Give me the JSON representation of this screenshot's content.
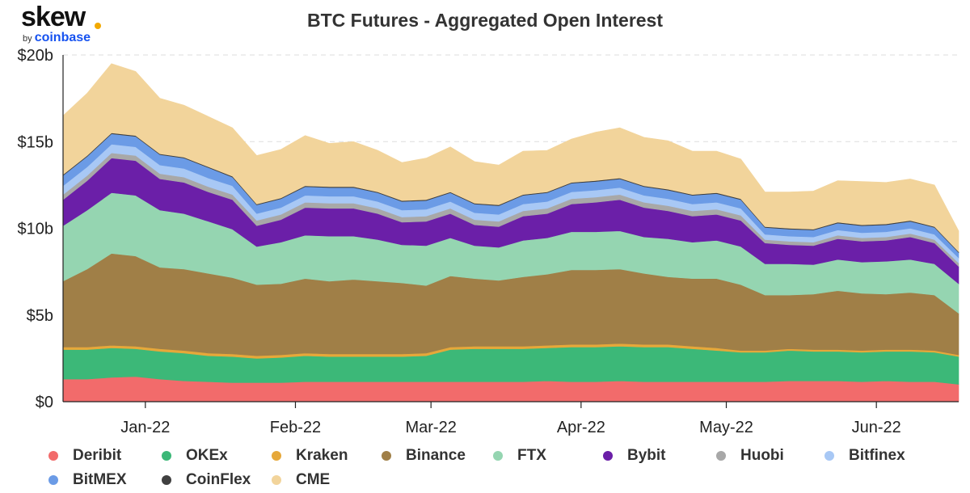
{
  "logo": {
    "word": "skew",
    "by": "by",
    "brand": "coinbase"
  },
  "chart_data": {
    "type": "area",
    "title": "BTC Futures - Aggregated Open Interest",
    "xlabel": "",
    "ylabel": "",
    "stacked": true,
    "grid": true,
    "legend_position": "bottom",
    "ylim": [
      0,
      20000000000
    ],
    "xlim": [
      "2021-12-15",
      "2022-06-18"
    ],
    "y_ticks": [
      {
        "value": 0,
        "label": "$0"
      },
      {
        "value": 5000000000,
        "label": "$5b"
      },
      {
        "value": 10000000000,
        "label": "$10b"
      },
      {
        "value": 15000000000,
        "label": "$15b"
      },
      {
        "value": 20000000000,
        "label": "$20b"
      }
    ],
    "x_ticks": [
      {
        "date": "2022-01-01",
        "label": "Jan-22"
      },
      {
        "date": "2022-02-01",
        "label": "Feb-22"
      },
      {
        "date": "2022-03-01",
        "label": "Mar-22"
      },
      {
        "date": "2022-04-01",
        "label": "Apr-22"
      },
      {
        "date": "2022-05-01",
        "label": "May-22"
      },
      {
        "date": "2022-06-01",
        "label": "Jun-22"
      }
    ],
    "x": [
      "2021-12-15",
      "2021-12-20",
      "2021-12-25",
      "2021-12-30",
      "2022-01-04",
      "2022-01-09",
      "2022-01-14",
      "2022-01-19",
      "2022-01-24",
      "2022-01-29",
      "2022-02-03",
      "2022-02-08",
      "2022-02-13",
      "2022-02-18",
      "2022-02-23",
      "2022-02-28",
      "2022-03-05",
      "2022-03-10",
      "2022-03-15",
      "2022-03-20",
      "2022-03-25",
      "2022-03-30",
      "2022-04-04",
      "2022-04-09",
      "2022-04-14",
      "2022-04-19",
      "2022-04-24",
      "2022-04-29",
      "2022-05-04",
      "2022-05-09",
      "2022-05-14",
      "2022-05-19",
      "2022-05-24",
      "2022-05-29",
      "2022-06-03",
      "2022-06-08",
      "2022-06-13",
      "2022-06-18"
    ],
    "series": [
      {
        "name": "Deribit",
        "color": "#f26b6b",
        "values": [
          1.3,
          1.3,
          1.4,
          1.45,
          1.3,
          1.2,
          1.15,
          1.1,
          1.1,
          1.1,
          1.15,
          1.15,
          1.15,
          1.15,
          1.15,
          1.15,
          1.15,
          1.15,
          1.15,
          1.15,
          1.2,
          1.15,
          1.15,
          1.2,
          1.15,
          1.15,
          1.15,
          1.15,
          1.15,
          1.15,
          1.2,
          1.2,
          1.2,
          1.15,
          1.2,
          1.15,
          1.15,
          1.0
        ]
      },
      {
        "name": "OKEx",
        "color": "#3cb878",
        "values": [
          1.7,
          1.7,
          1.7,
          1.6,
          1.6,
          1.6,
          1.5,
          1.5,
          1.4,
          1.45,
          1.5,
          1.45,
          1.45,
          1.45,
          1.45,
          1.5,
          1.85,
          1.9,
          1.9,
          1.9,
          1.9,
          2.0,
          2.0,
          2.0,
          2.0,
          2.0,
          1.9,
          1.8,
          1.7,
          1.7,
          1.75,
          1.7,
          1.7,
          1.7,
          1.7,
          1.75,
          1.7,
          1.6
        ]
      },
      {
        "name": "Kraken",
        "color": "#e6a83a",
        "values": [
          0.15,
          0.15,
          0.15,
          0.15,
          0.15,
          0.15,
          0.15,
          0.15,
          0.15,
          0.15,
          0.15,
          0.15,
          0.15,
          0.15,
          0.15,
          0.15,
          0.15,
          0.15,
          0.15,
          0.15,
          0.15,
          0.15,
          0.15,
          0.15,
          0.15,
          0.15,
          0.15,
          0.15,
          0.1,
          0.1,
          0.1,
          0.1,
          0.1,
          0.1,
          0.1,
          0.1,
          0.1,
          0.1
        ]
      },
      {
        "name": "Binance",
        "color": "#a07f47",
        "values": [
          3.8,
          4.5,
          5.3,
          5.2,
          4.7,
          4.7,
          4.6,
          4.4,
          4.1,
          4.1,
          4.3,
          4.2,
          4.3,
          4.2,
          4.1,
          3.9,
          4.1,
          3.9,
          3.8,
          4.0,
          4.1,
          4.3,
          4.3,
          4.3,
          4.1,
          3.9,
          3.9,
          4.0,
          3.8,
          3.2,
          3.1,
          3.2,
          3.4,
          3.3,
          3.2,
          3.3,
          3.2,
          2.4
        ]
      },
      {
        "name": "FTX",
        "color": "#95d5b1",
        "values": [
          3.2,
          3.4,
          3.5,
          3.5,
          3.3,
          3.2,
          3.0,
          2.8,
          2.2,
          2.4,
          2.5,
          2.6,
          2.5,
          2.4,
          2.2,
          2.3,
          2.2,
          1.9,
          1.9,
          2.1,
          2.1,
          2.2,
          2.2,
          2.2,
          2.1,
          2.2,
          2.1,
          2.2,
          2.2,
          1.8,
          1.8,
          1.7,
          1.8,
          1.8,
          1.9,
          1.9,
          1.8,
          1.7
        ]
      },
      {
        "name": "Bybit",
        "color": "#6b1fa8",
        "values": [
          1.5,
          1.7,
          2.0,
          2.0,
          1.8,
          1.8,
          1.7,
          1.7,
          1.2,
          1.3,
          1.6,
          1.6,
          1.6,
          1.5,
          1.3,
          1.4,
          1.4,
          1.2,
          1.2,
          1.4,
          1.4,
          1.6,
          1.7,
          1.8,
          1.7,
          1.6,
          1.5,
          1.5,
          1.5,
          1.2,
          1.1,
          1.1,
          1.2,
          1.2,
          1.2,
          1.3,
          1.2,
          1.0
        ]
      },
      {
        "name": "Huobi",
        "color": "#a8a8a8",
        "values": [
          0.3,
          0.3,
          0.3,
          0.3,
          0.3,
          0.3,
          0.3,
          0.3,
          0.3,
          0.3,
          0.3,
          0.3,
          0.3,
          0.3,
          0.3,
          0.3,
          0.3,
          0.3,
          0.3,
          0.3,
          0.3,
          0.3,
          0.3,
          0.3,
          0.3,
          0.3,
          0.3,
          0.3,
          0.3,
          0.2,
          0.2,
          0.2,
          0.2,
          0.2,
          0.2,
          0.2,
          0.2,
          0.2
        ]
      },
      {
        "name": "Bitfinex",
        "color": "#a8c8f5",
        "values": [
          0.5,
          0.5,
          0.5,
          0.5,
          0.5,
          0.5,
          0.5,
          0.5,
          0.4,
          0.4,
          0.4,
          0.4,
          0.4,
          0.4,
          0.4,
          0.4,
          0.4,
          0.4,
          0.4,
          0.4,
          0.4,
          0.4,
          0.4,
          0.4,
          0.4,
          0.4,
          0.4,
          0.4,
          0.4,
          0.3,
          0.3,
          0.3,
          0.3,
          0.3,
          0.3,
          0.3,
          0.3,
          0.3
        ]
      },
      {
        "name": "BitMEX",
        "color": "#6b9be6",
        "values": [
          0.6,
          0.6,
          0.6,
          0.6,
          0.6,
          0.6,
          0.6,
          0.5,
          0.5,
          0.5,
          0.5,
          0.5,
          0.5,
          0.5,
          0.5,
          0.5,
          0.5,
          0.5,
          0.5,
          0.5,
          0.5,
          0.5,
          0.5,
          0.5,
          0.5,
          0.5,
          0.5,
          0.5,
          0.5,
          0.4,
          0.4,
          0.4,
          0.4,
          0.4,
          0.4,
          0.4,
          0.4,
          0.3
        ]
      },
      {
        "name": "CoinFlex",
        "color": "#404040",
        "values": [
          0.05,
          0.05,
          0.05,
          0.05,
          0.05,
          0.05,
          0.05,
          0.05,
          0.05,
          0.05,
          0.05,
          0.05,
          0.05,
          0.05,
          0.05,
          0.05,
          0.05,
          0.05,
          0.05,
          0.05,
          0.05,
          0.05,
          0.05,
          0.05,
          0.05,
          0.05,
          0.05,
          0.05,
          0.05,
          0.05,
          0.05,
          0.05,
          0.05,
          0.05,
          0.05,
          0.05,
          0.05,
          0.05
        ]
      },
      {
        "name": "CME",
        "color": "#f2d49b",
        "values": [
          3.4,
          3.6,
          4.0,
          3.7,
          3.2,
          3.0,
          2.9,
          2.8,
          2.8,
          2.8,
          2.9,
          2.5,
          2.6,
          2.4,
          2.2,
          2.4,
          2.6,
          2.4,
          2.3,
          2.5,
          2.4,
          2.5,
          2.8,
          2.9,
          2.8,
          2.8,
          2.5,
          2.4,
          2.3,
          2.0,
          2.1,
          2.2,
          2.4,
          2.5,
          2.4,
          2.4,
          2.4,
          1.2
        ]
      }
    ]
  }
}
